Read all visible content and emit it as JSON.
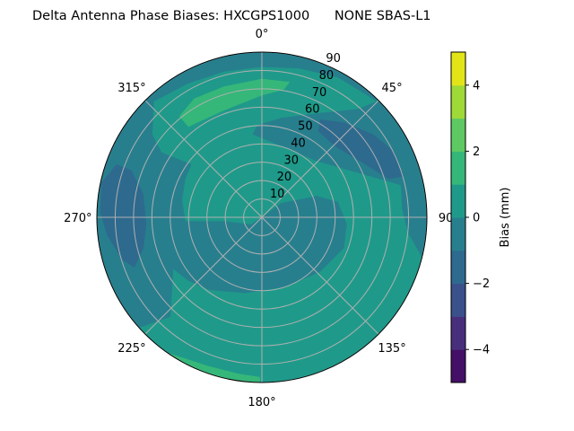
{
  "chart_data": {
    "type": "heatmap",
    "projection": "polar",
    "plot_style": "filled-contour",
    "title": "Delta Antenna Phase Biases: HXCGPS1000      NONE SBAS-L1",
    "theta_direction": "clockwise",
    "theta_zero": "north",
    "theta_ticks": [
      "0°",
      "45°",
      "90",
      "135°",
      "180°",
      "225°",
      "270°",
      "315°"
    ],
    "theta_tick_values": [
      0,
      45,
      90,
      135,
      180,
      225,
      270,
      315
    ],
    "r_ticks": [
      "10",
      "20",
      "30",
      "40",
      "50",
      "60",
      "70",
      "80",
      "90"
    ],
    "r_tick_values": [
      10,
      20,
      30,
      40,
      50,
      60,
      70,
      80,
      90
    ],
    "rlim": [
      0,
      90
    ],
    "grid": true,
    "colorbar": {
      "label": "Bias (mm)",
      "levels": [
        -5,
        -4,
        -3,
        -2,
        -1,
        0,
        1,
        2,
        3,
        4,
        5
      ],
      "colors": [
        "#440f66",
        "#482f7b",
        "#3b518b",
        "#2e6a8e",
        "#277f8e",
        "#1f9a8a",
        "#35b779",
        "#5ec962",
        "#9fd938",
        "#e3e418"
      ],
      "ticks": [
        "−4",
        "−2",
        "0",
        "2",
        "4"
      ],
      "tick_values": [
        -4,
        -2,
        0,
        2,
        4
      ],
      "placement": "right"
    },
    "background_level": [
      0,
      1
    ],
    "regions": [
      {
        "level": [
          -1,
          0
        ],
        "points": [
          [
            228,
            90
          ],
          [
            270,
            90
          ],
          [
            315,
            90
          ],
          [
            0,
            90
          ],
          [
            45,
            89
          ],
          [
            28.5,
            86.7
          ],
          [
            14.0,
            83.6
          ],
          [
            0,
            81.9
          ],
          [
            345.5,
            82.0
          ],
          [
            331.2,
            83.2
          ],
          [
            317.0,
            86.3
          ],
          [
            307.1,
            74.9
          ],
          [
            302.9,
            65.2
          ],
          [
            306.9,
            48.1
          ],
          [
            296.3,
            46.6
          ],
          [
            282.1,
            44.4
          ],
          [
            267.1,
            41.8
          ],
          [
            264.2,
            20.7
          ],
          [
            237.6,
            7.0
          ],
          [
            0,
            0
          ],
          [
            53.5,
            12.9
          ],
          [
            68.7,
            32.2
          ],
          [
            78.4,
            42.3
          ],
          [
            94.6,
            46.5
          ],
          [
            110.6,
            47.8
          ],
          [
            133.4,
            43.5
          ],
          [
            162.3,
            39.9
          ],
          [
            192.4,
            42.3
          ],
          [
            215.9,
            48.9
          ],
          [
            229.1,
            53.0
          ],
          [
            239.7,
            55.9
          ],
          [
            222.6,
            73.7
          ]
        ]
      },
      {
        "level": [
          -1,
          0
        ],
        "points": [
          [
            45,
            90
          ],
          [
            75,
            90
          ],
          [
            104,
            90
          ],
          [
            96.2,
            80.2
          ],
          [
            86.7,
            76.6
          ],
          [
            77.0,
            77.7
          ],
          [
            65.6,
            58.1
          ],
          [
            44.5,
            42.8
          ],
          [
            15.0,
            40.1
          ],
          [
            353.6,
            45.5
          ],
          [
            357.0,
            50.2
          ],
          [
            10.9,
            55.2
          ],
          [
            27.9,
            64.1
          ],
          [
            41.8,
            79.3
          ]
        ]
      },
      {
        "level": [
          -2,
          -1
        ],
        "points": [
          [
            30.7,
            62.0
          ],
          [
            40.8,
            68.3
          ],
          [
            53.5,
            75.9
          ],
          [
            63.9,
            80.6
          ],
          [
            73.9,
            80.5
          ],
          [
            73.3,
            72.2
          ],
          [
            62.7,
            63.1
          ],
          [
            45.8,
            55.5
          ],
          [
            33.3,
            56.0
          ]
        ]
      },
      {
        "level": [
          -2,
          -1
        ],
        "points": [
          [
            282.2,
            89.5
          ],
          [
            290.0,
            84.4
          ],
          [
            289.8,
            75.6
          ],
          [
            281.0,
            65.8
          ],
          [
            266.6,
            63.1
          ],
          [
            255.4,
            66.7
          ],
          [
            248.5,
            74.7
          ],
          [
            253.0,
            79.5
          ],
          [
            263.0,
            84.8
          ],
          [
            271.8,
            88.3
          ]
        ]
      },
      {
        "level": [
          1,
          2
        ],
        "points": [
          [
            320.7,
            71.1
          ],
          [
            330.3,
            74.5
          ],
          [
            343.9,
            74.2
          ],
          [
            0,
            75.4
          ],
          [
            11.7,
            75.3
          ],
          [
            9.8,
            70.7
          ],
          [
            0,
            66.4
          ],
          [
            340.5,
            61.8
          ],
          [
            320.9,
            63.5
          ]
        ]
      },
      {
        "level": [
          1,
          2
        ],
        "points": [
          [
            214.9,
            90
          ],
          [
            180.7,
            90
          ],
          [
            180.7,
            87.0
          ],
          [
            188.3,
            86.2
          ],
          [
            199.5,
            86.1
          ]
        ]
      }
    ]
  }
}
